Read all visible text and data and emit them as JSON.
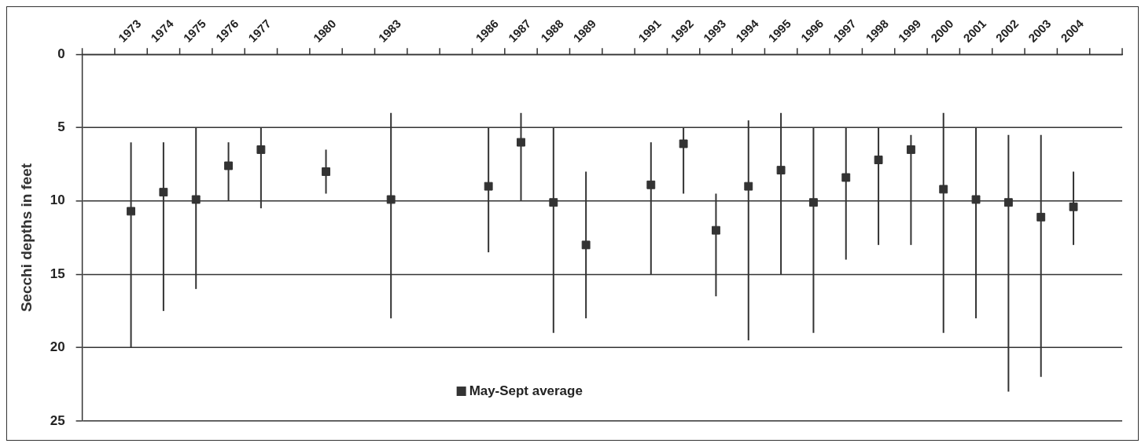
{
  "chart_data": {
    "type": "scatter",
    "ylabel": "Secchi depths in feet",
    "categories": [
      null,
      "1973",
      "1974",
      "1975",
      "1976",
      "1977",
      null,
      "1980",
      null,
      "1983",
      null,
      null,
      "1986",
      "1987",
      "1988",
      "1989",
      null,
      "1991",
      "1992",
      "1993",
      "1994",
      "1995",
      "1996",
      "1997",
      "1998",
      "1999",
      "2000",
      "2001",
      "2002",
      "2003",
      "2004",
      null
    ],
    "series": [
      {
        "name": "May-Sept average",
        "color": "#333333",
        "values": [
          null,
          10.7,
          9.4,
          9.9,
          7.6,
          6.5,
          null,
          8.0,
          null,
          9.9,
          null,
          null,
          9.0,
          6.0,
          10.1,
          13.0,
          null,
          8.9,
          6.1,
          12.0,
          9.0,
          7.9,
          10.1,
          8.4,
          7.2,
          6.5,
          9.2,
          9.9,
          10.1,
          11.1,
          10.4,
          null
        ],
        "errors": [
          null,
          [
            6,
            20
          ],
          [
            6,
            17.5
          ],
          [
            5,
            16
          ],
          [
            6,
            10
          ],
          [
            5,
            10.5
          ],
          null,
          [
            6.5,
            9.5
          ],
          null,
          [
            4,
            18
          ],
          null,
          null,
          [
            5,
            13.5
          ],
          [
            4,
            10
          ],
          [
            5,
            19
          ],
          [
            8,
            18
          ],
          null,
          [
            6,
            15
          ],
          [
            5,
            9.5
          ],
          [
            9.5,
            16.5
          ],
          [
            4.5,
            19.5
          ],
          [
            4,
            15
          ],
          [
            5,
            19
          ],
          [
            5,
            14
          ],
          [
            5,
            13
          ],
          [
            5.5,
            13
          ],
          [
            4,
            19
          ],
          [
            5,
            18
          ],
          [
            5.5,
            23
          ],
          [
            5.5,
            22
          ],
          [
            8,
            13
          ],
          null
        ]
      }
    ],
    "ylim": [
      25,
      0
    ],
    "yticks": [
      0,
      5,
      10,
      15,
      20,
      25
    ],
    "grid": "y",
    "legend": "bottom",
    "marker": "square"
  }
}
